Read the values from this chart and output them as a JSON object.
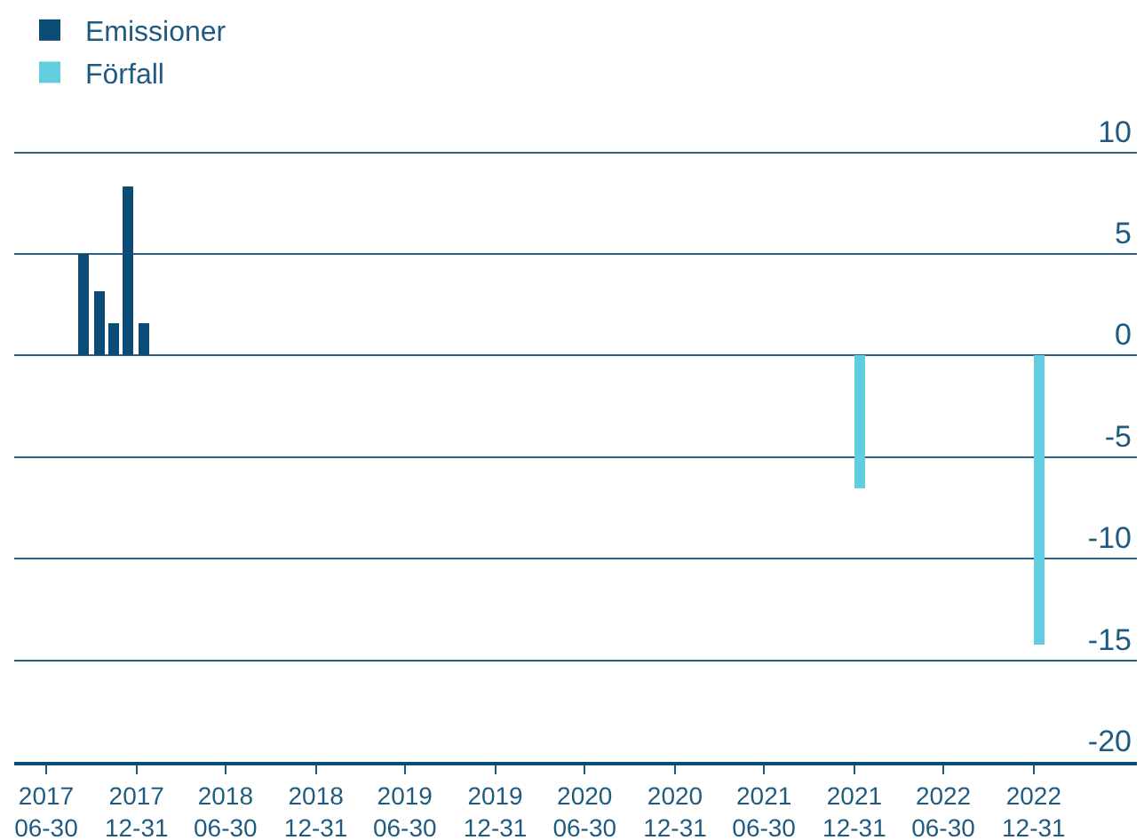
{
  "chart_data": {
    "type": "bar",
    "legend": "top left",
    "grid": "y",
    "series": [
      {
        "name": "Emissioner",
        "color": "#0b4c77",
        "x": [
          "2017-09-15",
          "2017-10-15",
          "2017-11-15",
          "2017-12-15",
          "2018-01-15"
        ],
        "values": [
          5.0,
          3.2,
          1.6,
          8.3,
          1.6
        ]
      },
      {
        "name": "Förfall",
        "color": "#62cde0",
        "x": [
          "2022-01-10",
          "2023-01-10"
        ],
        "values": [
          -6.5,
          -14.2
        ]
      }
    ],
    "xlim": [
      "2017-04-26",
      "2023-07-29"
    ],
    "xticks": [
      {
        "value": "2017-06-30",
        "label": "2017\n06-30"
      },
      {
        "value": "2017-12-31",
        "label": "2017\n12-31"
      },
      {
        "value": "2018-06-30",
        "label": "2018\n06-30"
      },
      {
        "value": "2018-12-31",
        "label": "2018\n12-31"
      },
      {
        "value": "2019-06-30",
        "label": "2019\n06-30"
      },
      {
        "value": "2019-12-31",
        "label": "2019\n12-31"
      },
      {
        "value": "2020-06-30",
        "label": "2020\n06-30"
      },
      {
        "value": "2020-12-31",
        "label": "2020\n12-31"
      },
      {
        "value": "2021-06-30",
        "label": "2021\n06-30"
      },
      {
        "value": "2021-12-31",
        "label": "2021\n12-31"
      },
      {
        "value": "2022-06-30",
        "label": "2022\n06-30"
      },
      {
        "value": "2022-12-31",
        "label": "2022\n12-31"
      }
    ],
    "ylim": [
      -20,
      17.5
    ],
    "yticks": [
      -20,
      -15,
      -10,
      -5,
      0,
      5,
      10
    ]
  }
}
